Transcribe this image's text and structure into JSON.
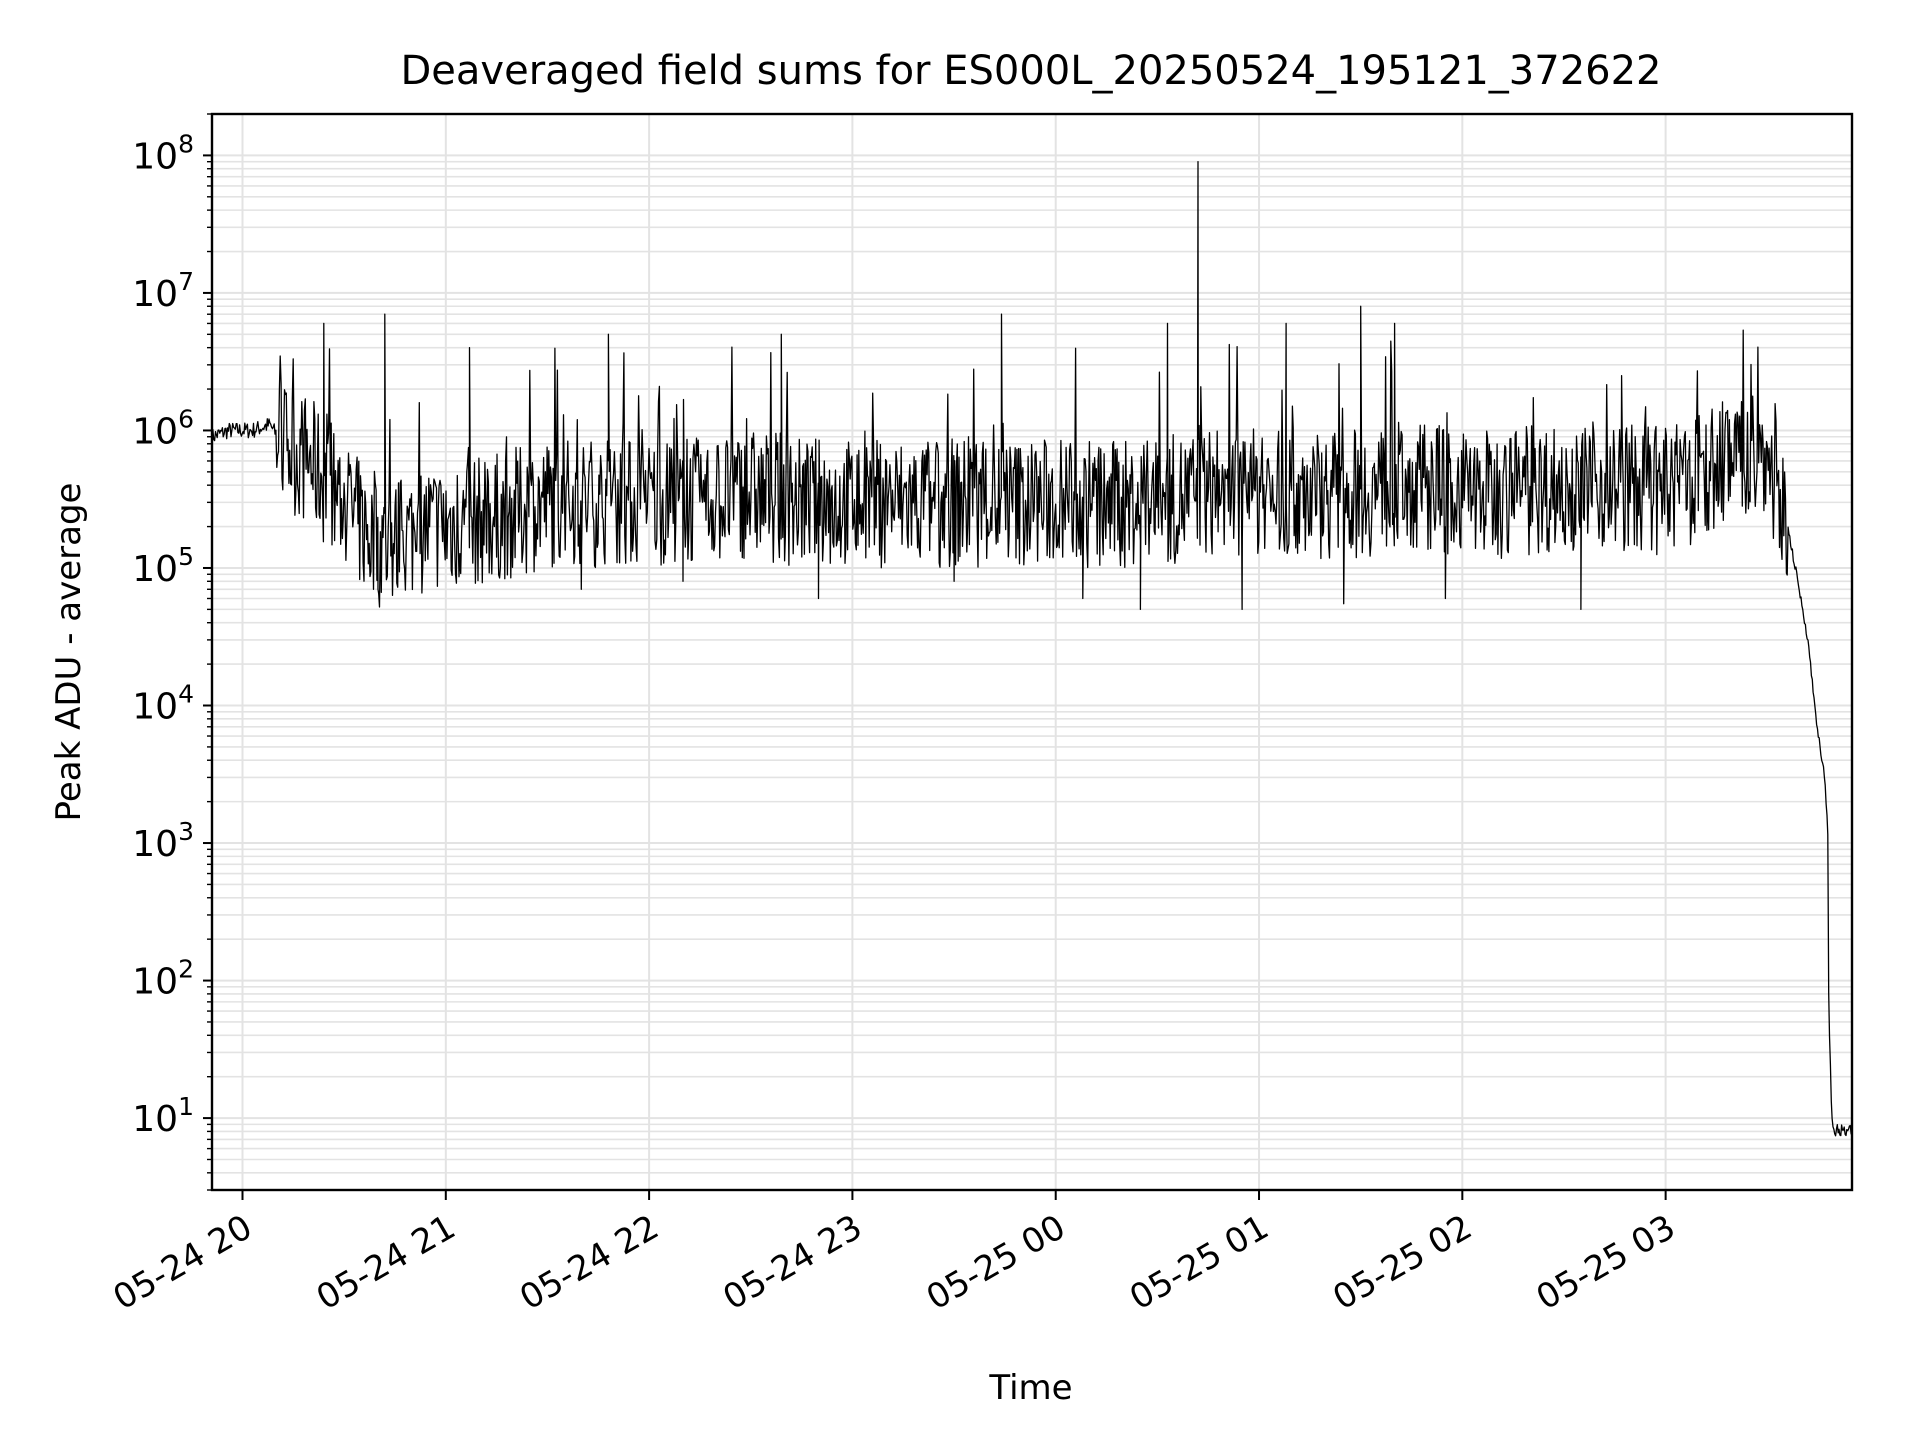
{
  "chart_data": {
    "type": "line",
    "title": "Deaveraged field sums for ES000L_20250524_195121_372622",
    "xlabel": "Time",
    "ylabel": "Peak ADU - average",
    "y_scale": "log",
    "ylim": [
      3,
      200000000
    ],
    "xlim": [
      "2025-05-24 19:51",
      "2025-05-25 03:55"
    ],
    "grid": true,
    "grid_minor": true,
    "x_ticks": [
      {
        "label": "05-24 20",
        "value": "2025-05-24 20:00"
      },
      {
        "label": "05-24 21",
        "value": "2025-05-24 21:00"
      },
      {
        "label": "05-24 22",
        "value": "2025-05-24 22:00"
      },
      {
        "label": "05-24 23",
        "value": "2025-05-24 23:00"
      },
      {
        "label": "05-25 00",
        "value": "2025-05-25 00:00"
      },
      {
        "label": "05-25 01",
        "value": "2025-05-25 01:00"
      },
      {
        "label": "05-25 02",
        "value": "2025-05-25 02:00"
      },
      {
        "label": "05-25 03",
        "value": "2025-05-25 03:00"
      }
    ],
    "y_ticks": [
      {
        "base": "10",
        "exp": "1",
        "value": 10
      },
      {
        "base": "10",
        "exp": "2",
        "value": 100
      },
      {
        "base": "10",
        "exp": "3",
        "value": 1000
      },
      {
        "base": "10",
        "exp": "4",
        "value": 10000
      },
      {
        "base": "10",
        "exp": "5",
        "value": 100000
      },
      {
        "base": "10",
        "exp": "6",
        "value": 1000000
      },
      {
        "base": "10",
        "exp": "7",
        "value": 10000000
      },
      {
        "base": "10",
        "exp": "8",
        "value": 100000000
      }
    ],
    "series": [
      {
        "color": "#000000",
        "points": [
          [
            "2025-05-24 19:51",
            900000
          ],
          [
            "2025-05-24 19:56",
            1000000
          ],
          [
            "2025-05-24 20:03",
            1000000
          ],
          [
            "2025-05-24 20:08",
            1100000
          ],
          [
            "2025-05-24 20:12",
            800000
          ],
          [
            "2025-05-24 20:15",
            700000
          ],
          [
            "2025-05-24 20:20",
            600000
          ],
          [
            "2025-05-24 20:25",
            400000
          ],
          [
            "2025-05-24 20:30",
            300000
          ],
          [
            "2025-05-24 20:35",
            200000
          ],
          [
            "2025-05-24 20:40",
            150000
          ],
          [
            "2025-05-24 20:45",
            150000
          ],
          [
            "2025-05-24 20:50",
            180000
          ],
          [
            "2025-05-24 20:55",
            200000
          ],
          [
            "2025-05-24 21:00",
            200000
          ],
          [
            "2025-05-24 21:10",
            220000
          ],
          [
            "2025-05-24 21:20",
            250000
          ],
          [
            "2025-05-24 21:30",
            300000
          ],
          [
            "2025-05-24 21:45",
            300000
          ],
          [
            "2025-05-24 22:00",
            300000
          ],
          [
            "2025-05-24 22:15",
            300000
          ],
          [
            "2025-05-24 22:30",
            350000
          ],
          [
            "2025-05-24 22:45",
            300000
          ],
          [
            "2025-05-24 23:00",
            300000
          ],
          [
            "2025-05-24 23:15",
            300000
          ],
          [
            "2025-05-24 23:30",
            300000
          ],
          [
            "2025-05-24 23:45",
            300000
          ],
          [
            "2025-05-25 00:00",
            300000
          ],
          [
            "2025-05-25 00:15",
            280000
          ],
          [
            "2025-05-25 00:30",
            300000
          ],
          [
            "2025-05-25 00:45",
            350000
          ],
          [
            "2025-05-25 01:00",
            350000
          ],
          [
            "2025-05-25 01:15",
            350000
          ],
          [
            "2025-05-25 01:30",
            350000
          ],
          [
            "2025-05-25 01:45",
            400000
          ],
          [
            "2025-05-25 02:00",
            350000
          ],
          [
            "2025-05-25 02:15",
            350000
          ],
          [
            "2025-05-25 02:30",
            400000
          ],
          [
            "2025-05-25 02:45",
            400000
          ],
          [
            "2025-05-25 03:00",
            350000
          ],
          [
            "2025-05-25 03:10",
            450000
          ],
          [
            "2025-05-25 03:20",
            650000
          ],
          [
            "2025-05-25 03:25",
            700000
          ],
          [
            "2025-05-25 03:30",
            600000
          ],
          [
            "2025-05-25 03:33",
            400000
          ],
          [
            "2025-05-25 03:36",
            200000
          ],
          [
            "2025-05-25 03:39",
            80000
          ],
          [
            "2025-05-25 03:42",
            30000
          ],
          [
            "2025-05-25 03:44",
            10000
          ],
          [
            "2025-05-25 03:46",
            4000
          ],
          [
            "2025-05-25 03:47",
            3000
          ],
          [
            "2025-05-25 03:48",
            1000
          ],
          [
            "2025-05-25 03:48",
            100
          ],
          [
            "2025-05-25 03:49",
            10
          ],
          [
            "2025-05-25 03:50",
            8
          ],
          [
            "2025-05-25 03:52",
            8
          ],
          [
            "2025-05-25 03:55",
            8
          ]
        ],
        "spikes": [
          [
            "2025-05-24 20:24",
            6000000
          ],
          [
            "2025-05-24 20:42",
            7000000
          ],
          [
            "2025-05-24 21:07",
            4000000
          ],
          [
            "2025-05-24 21:48",
            5000000
          ],
          [
            "2025-05-24 22:39",
            5000000
          ],
          [
            "2025-05-24 23:44",
            7000000
          ],
          [
            "2025-05-25 00:42",
            90000000
          ],
          [
            "2025-05-25 00:33",
            6000000
          ],
          [
            "2025-05-25 01:08",
            6000000
          ],
          [
            "2025-05-25 01:30",
            8000000
          ],
          [
            "2025-05-25 01:40",
            6000000
          ],
          [
            "2025-05-25 02:47",
            2500000
          ]
        ],
        "dips": [
          [
            "2025-05-24 20:40",
            70000
          ],
          [
            "2025-05-24 21:15",
            120000
          ],
          [
            "2025-05-24 21:40",
            70000
          ],
          [
            "2025-05-24 22:10",
            80000
          ],
          [
            "2025-05-24 22:50",
            60000
          ],
          [
            "2025-05-24 23:30",
            80000
          ],
          [
            "2025-05-25 00:08",
            60000
          ],
          [
            "2025-05-25 00:25",
            50000
          ],
          [
            "2025-05-25 00:55",
            50000
          ],
          [
            "2025-05-25 01:25",
            55000
          ],
          [
            "2025-05-25 01:55",
            60000
          ],
          [
            "2025-05-25 02:35",
            50000
          ]
        ]
      }
    ]
  }
}
